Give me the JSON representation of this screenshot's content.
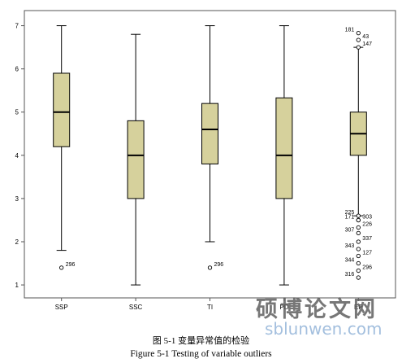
{
  "chart_data": {
    "type": "boxplot",
    "ylim": [
      0.7,
      7.35
    ],
    "yticks": [
      1,
      2,
      3,
      4,
      5,
      6,
      7
    ],
    "categories": [
      "SSP",
      "SSC",
      "TI",
      "PD",
      "EP"
    ],
    "boxes": [
      {
        "label": "SSP",
        "whisker_low": 1.8,
        "q1": 4.2,
        "median": 5.0,
        "q3": 5.9,
        "whisker_high": 7.0,
        "outliers": [
          {
            "value": 1.4,
            "id": "296"
          }
        ]
      },
      {
        "label": "SSC",
        "whisker_low": 1.0,
        "q1": 3.0,
        "median": 4.0,
        "q3": 4.8,
        "whisker_high": 6.8,
        "outliers": []
      },
      {
        "label": "TI",
        "whisker_low": 2.0,
        "q1": 3.8,
        "median": 4.6,
        "q3": 5.2,
        "whisker_high": 7.0,
        "outliers": [
          {
            "value": 1.4,
            "id": "296"
          }
        ]
      },
      {
        "label": "PD",
        "whisker_low": 1.0,
        "q1": 3.0,
        "median": 4.0,
        "q3": 5.33,
        "whisker_high": 7.0,
        "outliers": []
      },
      {
        "label": "EP",
        "whisker_low": 2.6,
        "q1": 4.0,
        "median": 4.5,
        "q3": 5.0,
        "whisker_high": 6.5,
        "outliers": [
          {
            "value": 6.67,
            "id": "43"
          },
          {
            "value": 6.83,
            "id": "181"
          },
          {
            "value": 6.5,
            "id": "147"
          },
          {
            "value": 2.6,
            "id": "225"
          },
          {
            "value": 2.5,
            "id": "303"
          },
          {
            "value": 2.5,
            "id": "171"
          },
          {
            "value": 2.33,
            "id": "226"
          },
          {
            "value": 2.2,
            "id": "307"
          },
          {
            "value": 2.0,
            "id": "337"
          },
          {
            "value": 1.83,
            "id": "343"
          },
          {
            "value": 1.67,
            "id": "127"
          },
          {
            "value": 1.5,
            "id": "344"
          },
          {
            "value": 1.33,
            "id": "296"
          },
          {
            "value": 1.17,
            "id": "316"
          }
        ]
      }
    ],
    "box_color": "#d6d19c",
    "grid": false
  },
  "caption_cn": "图 5-1 变量异常值的检验",
  "caption_en": "Figure 5-1 Testing of variable outliers",
  "watermark": "硕博论文网",
  "watermark_url": "sblunwen.com"
}
